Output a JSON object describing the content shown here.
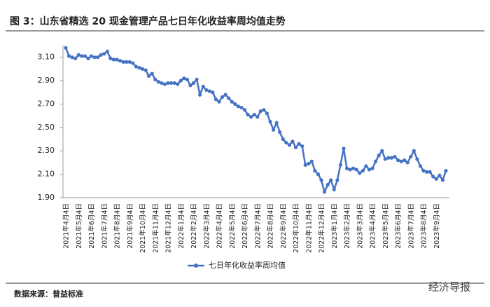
{
  "chart_data": {
    "type": "line",
    "title": "图 3：山东省精选 20 现金管理产品七日年化收益率周均值走势",
    "source": "数据来源：普益标准",
    "watermark": "经济导报",
    "categories": [
      "2021年4月4日",
      null,
      null,
      null,
      "2021年5月4日",
      null,
      null,
      null,
      "2021年6月4日",
      null,
      null,
      null,
      "2021年7月4日",
      null,
      null,
      null,
      "2021年8月4日",
      null,
      null,
      null,
      "2021年9月4日",
      null,
      null,
      null,
      "2021年10月4日",
      null,
      null,
      null,
      "2021年11月4日",
      null,
      null,
      null,
      "2021年12月4日",
      null,
      null,
      null,
      "2022年1月4日",
      null,
      null,
      null,
      "2022年2月4日",
      null,
      null,
      null,
      "2022年3月4日",
      null,
      null,
      null,
      "2022年4月4日",
      null,
      null,
      null,
      "2022年5月4日",
      null,
      null,
      null,
      "2022年6月4日",
      null,
      null,
      null,
      "2022年7月4日",
      null,
      null,
      null,
      "2022年8月4日",
      null,
      null,
      null,
      "2022年9月4日",
      null,
      null,
      null,
      "2022年10月4日",
      null,
      null,
      null,
      "2022年11月4日",
      null,
      null,
      null,
      "2022年12月4日",
      null,
      null,
      null,
      "2023年1月4日",
      null,
      null,
      null,
      "2023年2月4日",
      null,
      null,
      null,
      "2023年3月4日",
      null,
      null,
      null,
      "2023年4月4日",
      null,
      null,
      null,
      "2023年5月4日",
      null,
      null,
      null,
      "2023年6月4日",
      null,
      null,
      null,
      "2023年7月4日",
      null,
      null,
      null,
      "2023年8月4日",
      null,
      null,
      null,
      "2023年9月4日",
      null,
      null,
      null
    ],
    "series": [
      {
        "name": "七日年化收益率周均值",
        "color": "#4472c4",
        "values": [
          3.18,
          3.11,
          3.1,
          3.09,
          3.12,
          3.11,
          3.11,
          3.09,
          3.11,
          3.1,
          3.1,
          3.12,
          3.13,
          3.15,
          3.09,
          3.08,
          3.08,
          3.07,
          3.06,
          3.06,
          3.06,
          3.05,
          3.02,
          3.01,
          3.0,
          2.99,
          2.94,
          2.96,
          2.91,
          2.89,
          2.88,
          2.87,
          2.88,
          2.88,
          2.88,
          2.87,
          2.9,
          2.92,
          2.91,
          2.86,
          2.88,
          2.91,
          2.78,
          2.85,
          2.82,
          2.81,
          2.8,
          2.74,
          2.72,
          2.76,
          2.78,
          2.75,
          2.72,
          2.7,
          2.68,
          2.67,
          2.65,
          2.61,
          2.59,
          2.61,
          2.59,
          2.64,
          2.65,
          2.62,
          2.55,
          2.48,
          2.54,
          2.46,
          2.4,
          2.37,
          2.35,
          2.38,
          2.33,
          2.36,
          2.34,
          2.18,
          2.19,
          2.21,
          2.13,
          2.1,
          2.05,
          1.95,
          2.01,
          2.05,
          1.97,
          2.05,
          2.18,
          2.32,
          2.15,
          2.14,
          2.15,
          2.14,
          2.11,
          2.13,
          2.17,
          2.14,
          2.15,
          2.21,
          2.26,
          2.3,
          2.23,
          2.24,
          2.24,
          2.25,
          2.22,
          2.21,
          2.22,
          2.2,
          2.25,
          2.3,
          2.23,
          2.17,
          2.13,
          2.12,
          2.12,
          2.08,
          2.06,
          2.09,
          2.05,
          2.13
        ]
      }
    ],
    "ylim": [
      1.9,
      3.2
    ],
    "yticks": [
      {
        "value": 1.9,
        "label": "1.90"
      },
      {
        "value": 2.1,
        "label": "2.10"
      },
      {
        "value": 2.3,
        "label": "2.30"
      },
      {
        "value": 2.5,
        "label": "2.50"
      },
      {
        "value": 2.7,
        "label": "2.70"
      },
      {
        "value": 2.9,
        "label": "2.90"
      },
      {
        "value": 3.1,
        "label": "3.10"
      }
    ],
    "grid": false,
    "legend": "bottom"
  }
}
